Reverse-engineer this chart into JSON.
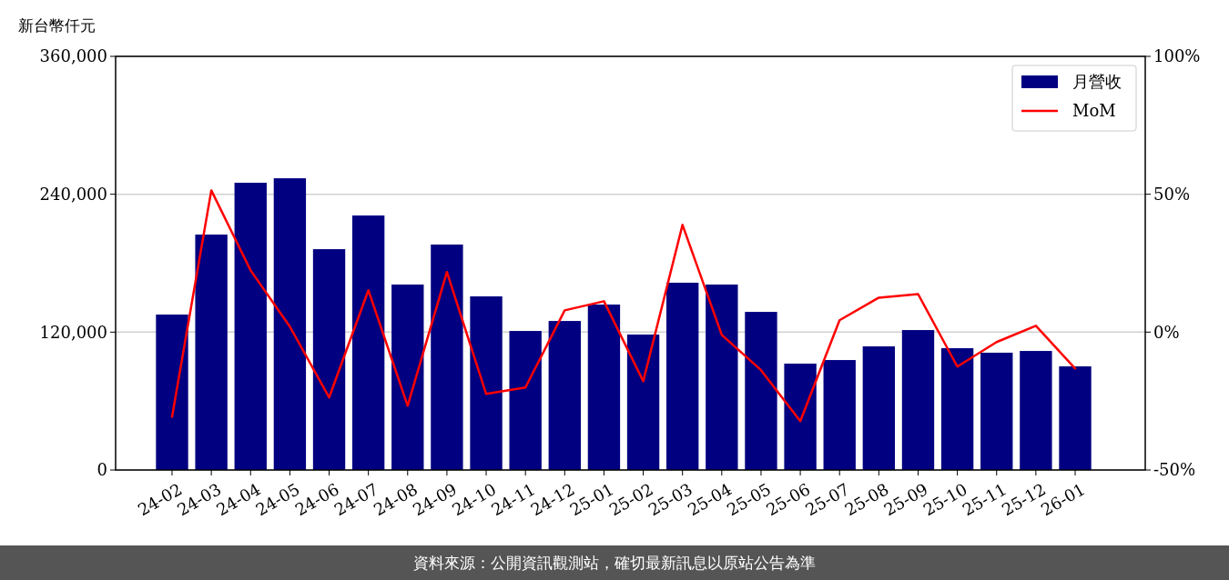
{
  "chart_data": {
    "type": "bar",
    "ylabel": "新台幣仟元",
    "categories": [
      "24-02",
      "24-03",
      "24-04",
      "24-05",
      "24-06",
      "24-07",
      "24-08",
      "24-09",
      "24-10",
      "24-11",
      "24-12",
      "25-01",
      "25-02",
      "25-03",
      "25-04",
      "25-05",
      "25-06",
      "25-07",
      "25-08",
      "25-09",
      "25-10",
      "25-11",
      "25-12",
      "26-01"
    ],
    "series": [
      {
        "name": "月營收",
        "color": "#000080",
        "values": [
          135300,
          204900,
          250000,
          253900,
          192200,
          221500,
          161400,
          196200,
          151100,
          121000,
          129700,
          144000,
          117900,
          163000,
          161400,
          137600,
          92600,
          95700,
          107600,
          121800,
          106000,
          102100,
          103600,
          90200
        ]
      },
      {
        "name": "MoM",
        "type": "line",
        "axis": "y2",
        "color": "#ff0000",
        "values": [
          -30.7,
          51.4,
          22.4,
          2.0,
          -23.7,
          15.2,
          -26.7,
          21.8,
          -22.4,
          -20.1,
          7.9,
          11.2,
          -17.8,
          38.9,
          -1.0,
          -13.8,
          -32.3,
          4.3,
          12.5,
          13.8,
          -12.5,
          -3.6,
          2.3,
          -13.2
        ]
      }
    ],
    "ylim": [
      0,
      360000
    ],
    "yticks": [
      {
        "value": 0,
        "label": "0"
      },
      {
        "value": 120000,
        "label": "120,000"
      },
      {
        "value": 240000,
        "label": "240,000"
      },
      {
        "value": 360000,
        "label": "360,000"
      }
    ],
    "y2lim": [
      -50,
      100
    ],
    "y2ticks": [
      {
        "value": -50,
        "label": "-50%"
      },
      {
        "value": 0,
        "label": "0%"
      },
      {
        "value": 50,
        "label": "50%"
      },
      {
        "value": 100,
        "label": "100%"
      }
    ],
    "grid": "y",
    "legend": "top right",
    "annotations": [
      "資料來源：公開資訊觀測站，確切最新訊息以原站公告為準"
    ]
  }
}
